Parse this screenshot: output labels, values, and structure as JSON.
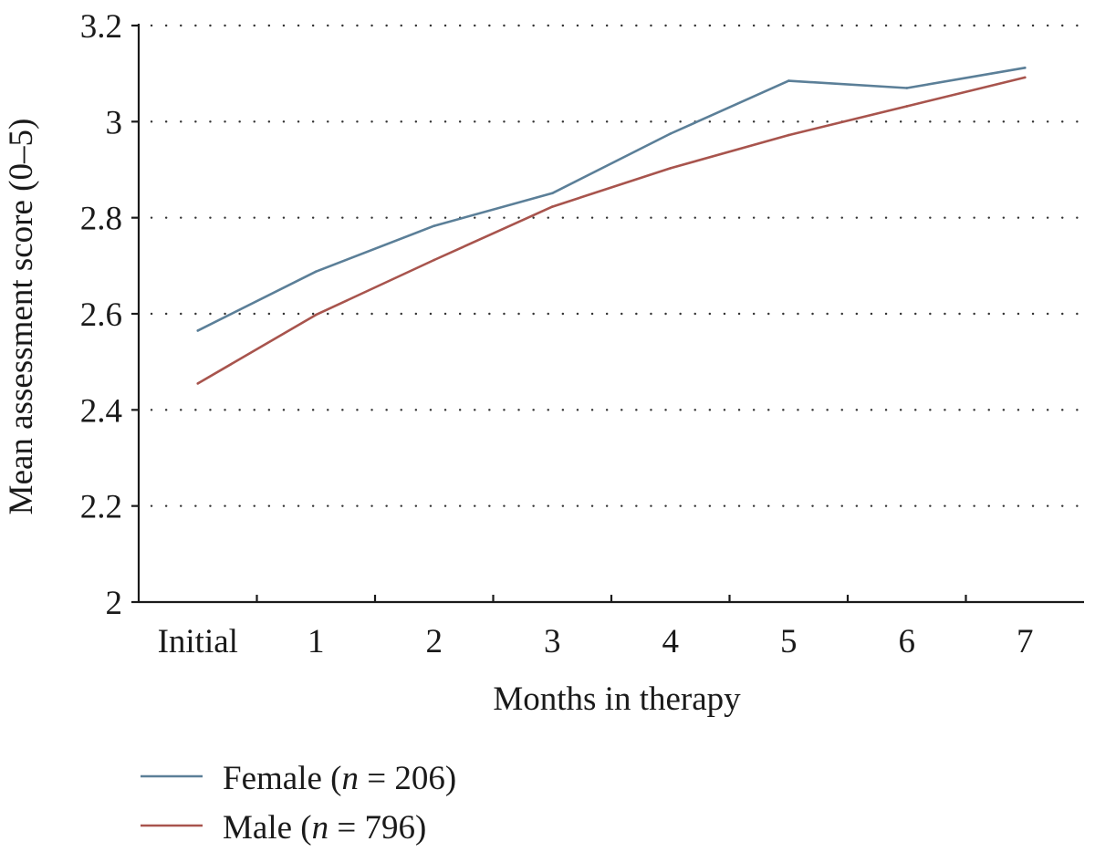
{
  "chart_data": {
    "type": "line",
    "categories": [
      "Initial",
      "1",
      "2",
      "3",
      "4",
      "5",
      "6",
      "7"
    ],
    "xlabel": "Months in therapy",
    "ylabel": "Mean assessment score (0–5)",
    "ylim": [
      2,
      3.2
    ],
    "yticks": [
      "2",
      "2.2",
      "2.4",
      "2.6",
      "2.8",
      "3",
      "3.2"
    ],
    "grid": true,
    "legend_position": "bottom-left",
    "series": [
      {
        "name": "Female",
        "n_label": "n",
        "n_value": "= 206)",
        "color": "#5b7f98",
        "values": [
          2.565,
          2.688,
          2.783,
          2.851,
          2.975,
          3.085,
          3.07,
          3.112
        ]
      },
      {
        "name": "Male",
        "n_label": "n",
        "n_value": "= 796)",
        "color": "#a8544d",
        "values": [
          2.455,
          2.598,
          2.712,
          2.823,
          2.903,
          2.972,
          3.032,
          3.092
        ]
      }
    ]
  }
}
